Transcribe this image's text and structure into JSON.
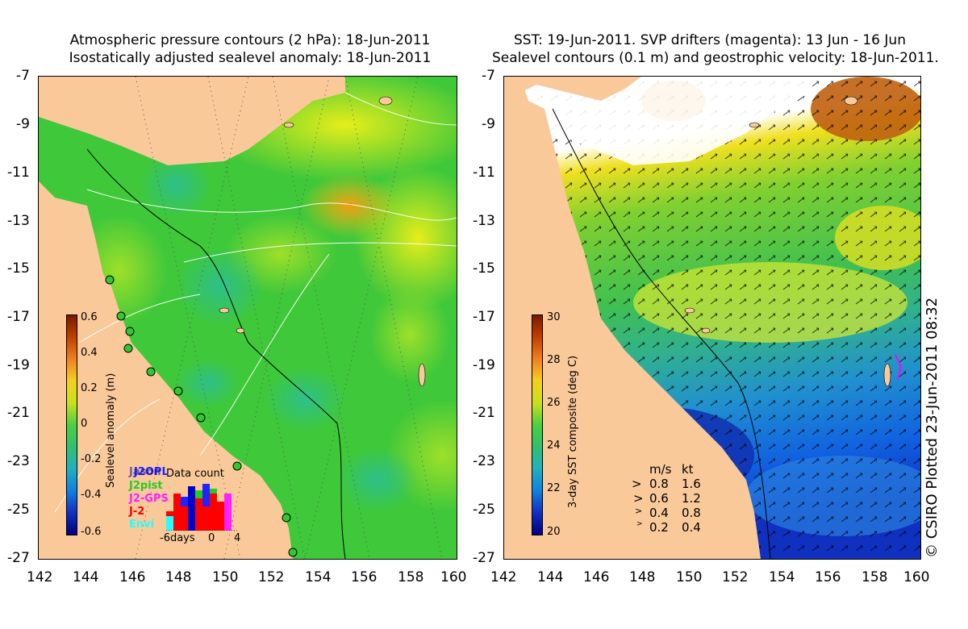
{
  "left_panel": {
    "title_line1": "Atmospheric pressure contours (2 hPa): 18-Jun-2011",
    "title_line2": "Isostatically adjusted sealevel anomaly: 18-Jun-2011",
    "colorbar_label": "Sealevel anomaly (m)",
    "colorbar_ticks": [
      "0.6",
      "0.4",
      "0.2",
      "0",
      "-0.2",
      "-0.4",
      "-0.6"
    ],
    "data_count": {
      "title": "Data count",
      "legend": [
        {
          "label": "J2OPL",
          "color": "#2222ff"
        },
        {
          "label": "Jason",
          "color": "#0000aa"
        },
        {
          "label": "J2pist",
          "color": "#22cc22"
        },
        {
          "label": "J2-GPS",
          "color": "#ff22ff"
        },
        {
          "label": "J-2",
          "color": "#ff0000"
        },
        {
          "label": "Envi",
          "color": "#22ffff"
        }
      ],
      "xlabels": [
        "-6days",
        "0",
        "4"
      ]
    }
  },
  "right_panel": {
    "title_line1": "SST: 19-Jun-2011. SVP drifters (magenta): 13 Jun - 16 Jun",
    "title_line2": "Sealevel contours (0.1 m) and geostrophic velocity: 18-Jun-2011.",
    "colorbar_label": "3-day SST composite (deg C)",
    "colorbar_ticks": [
      "30",
      "28",
      "26",
      "24",
      "22",
      "20"
    ],
    "velocity_legend": {
      "header_ms": "m/s",
      "header_kt": "kt",
      "rows": [
        {
          "ms": "0.8",
          "kt": "1.6"
        },
        {
          "ms": "0.6",
          "kt": "1.2"
        },
        {
          "ms": "0.4",
          "kt": "0.8"
        },
        {
          "ms": "0.2",
          "kt": "0.4"
        }
      ]
    }
  },
  "axes": {
    "lat_ticks": [
      "-7",
      "-9",
      "-11",
      "-13",
      "-15",
      "-17",
      "-19",
      "-21",
      "-23",
      "-25",
      "-27"
    ],
    "lon_ticks": [
      "142",
      "144",
      "146",
      "148",
      "150",
      "152",
      "154",
      "156",
      "158",
      "160"
    ]
  },
  "copyright": "© CSIRO Plotted 23-Jun-2011 08:32",
  "colors": {
    "land": "#f9c99a",
    "sla_mid": "#3fd03a",
    "sst_cloud": "#ffffff"
  }
}
